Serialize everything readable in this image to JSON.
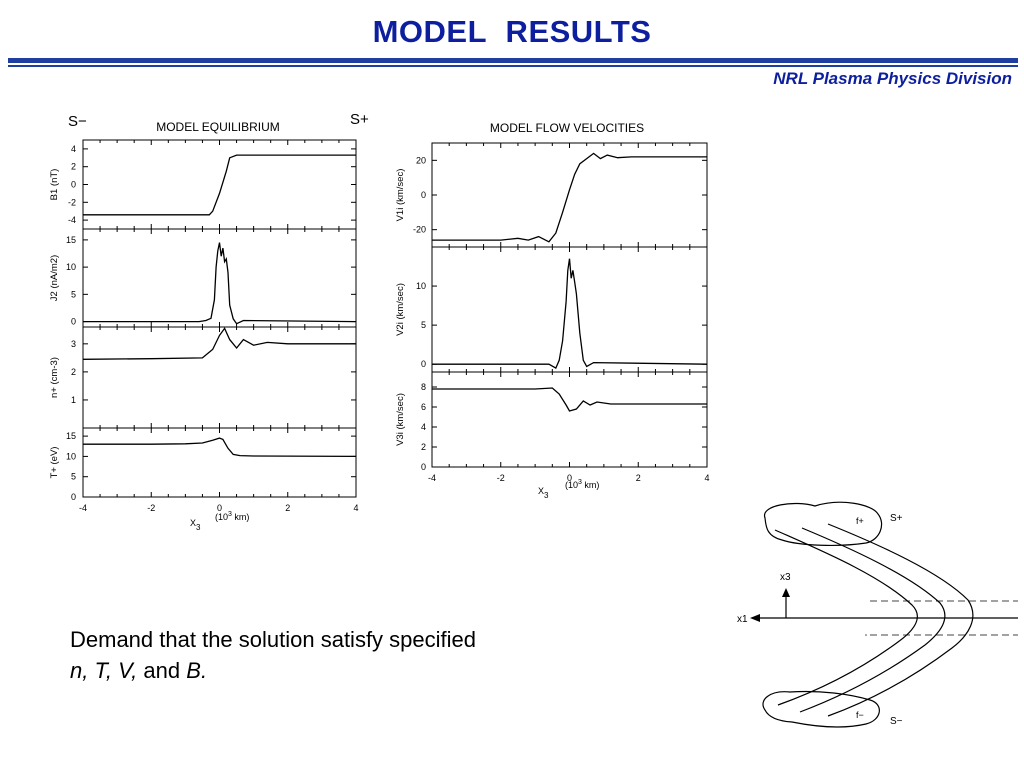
{
  "header": {
    "title": "MODEL  RESULTS",
    "subtitle": "NRL Plasma Physics Division"
  },
  "labels": {
    "s_minus": "S−",
    "s_plus": "S+"
  },
  "caption": {
    "line1": "Demand that the solution satisfy specified",
    "vars_n": "n,",
    "vars_t": "T,",
    "vars_v": "V,",
    "and_word": "and",
    "vars_b": "B."
  },
  "chart_data": [
    {
      "type": "line",
      "title": "MODEL EQUILIBRIUM",
      "xlabel": "X3  (10^3 km)",
      "xlabel_main": "X",
      "xlabel_sub": "3",
      "xlabel_unit": "(10",
      "xlabel_unit_sup": "3",
      "xlabel_unit_end": " km)",
      "xlim": [
        -4,
        4
      ],
      "xticks": [
        "-4",
        "-2",
        "0",
        "2",
        "4"
      ],
      "color": "#000000",
      "panels": [
        {
          "ylabel": "B1 (nT)",
          "ylim": [
            -5,
            5
          ],
          "yticks": [
            4,
            2,
            0,
            -2,
            -4
          ],
          "ytick_labels": [
            "4",
            "2",
            "0",
            "-2",
            "-4"
          ],
          "x": [
            -4,
            -1.0,
            -0.3,
            -0.2,
            0.0,
            0.2,
            0.3,
            0.5,
            1.0,
            4
          ],
          "y": [
            -3.4,
            -3.4,
            -3.4,
            -3.0,
            -1.0,
            1.5,
            3.0,
            3.3,
            3.3,
            3.3
          ]
        },
        {
          "ylabel": "J2 (nA/m2)",
          "ylim": [
            -1,
            17
          ],
          "yticks": [
            15,
            10,
            5,
            0
          ],
          "ytick_labels": [
            "15",
            "10",
            "5",
            "0"
          ],
          "x": [
            -4,
            -0.6,
            -0.4,
            -0.25,
            -0.15,
            -0.1,
            -0.05,
            0.0,
            0.05,
            0.1,
            0.15,
            0.2,
            0.25,
            0.3,
            0.4,
            0.5,
            0.7,
            4
          ],
          "y": [
            0,
            0,
            0.2,
            0.6,
            4,
            10,
            13,
            14.5,
            12,
            13.5,
            11,
            11.5,
            9,
            3,
            0.5,
            -0.4,
            0.2,
            0
          ]
        },
        {
          "ylabel": "n+ (cm-3)",
          "ylim": [
            0,
            3.6
          ],
          "yticks": [
            3,
            2,
            1
          ],
          "ytick_labels": [
            "3",
            "2",
            "1"
          ],
          "x": [
            -4,
            -2,
            -0.5,
            -0.2,
            0.0,
            0.15,
            0.3,
            0.5,
            0.7,
            1.0,
            1.4,
            2.0,
            4
          ],
          "y": [
            2.45,
            2.47,
            2.5,
            2.8,
            3.3,
            3.55,
            3.15,
            2.85,
            3.15,
            2.95,
            3.05,
            3.0,
            3.0
          ]
        },
        {
          "ylabel": "T+ (eV)",
          "ylim": [
            0,
            17
          ],
          "yticks": [
            15,
            10,
            5,
            0
          ],
          "ytick_labels": [
            "15",
            "10",
            "5",
            "0"
          ],
          "x": [
            -4,
            -2,
            -1,
            -0.5,
            -0.2,
            0.0,
            0.1,
            0.25,
            0.4,
            0.6,
            1.0,
            4
          ],
          "y": [
            13,
            13,
            13.1,
            13.3,
            14,
            14.5,
            14.2,
            12,
            10.5,
            10.2,
            10.1,
            10
          ]
        }
      ]
    },
    {
      "type": "line",
      "title": "MODEL FLOW VELOCITIES",
      "xlabel": "X3  (10^3 km)",
      "xlabel_main": "X",
      "xlabel_sub": "3",
      "xlabel_unit": "(10",
      "xlabel_unit_sup": "3",
      "xlabel_unit_end": " km)",
      "xlim": [
        -4,
        4
      ],
      "xticks": [
        "-4",
        "-2",
        "0",
        "2",
        "4"
      ],
      "color": "#000000",
      "panels": [
        {
          "ylabel": "V1i (km/sec)",
          "ylim": [
            -30,
            30
          ],
          "yticks": [
            20,
            0,
            -20
          ],
          "ytick_labels": [
            "20",
            "0",
            "-20"
          ],
          "x": [
            -4,
            -2,
            -1.5,
            -1.2,
            -0.9,
            -0.6,
            -0.4,
            -0.2,
            0.0,
            0.15,
            0.3,
            0.5,
            0.7,
            0.9,
            1.1,
            1.4,
            1.8,
            4
          ],
          "y": [
            -26,
            -26,
            -25,
            -26,
            -24,
            -27,
            -22,
            -10,
            3,
            12,
            18,
            21,
            24,
            21,
            23,
            21.5,
            22,
            22
          ]
        },
        {
          "ylabel": "V2i (km/sec)",
          "ylim": [
            -1,
            15
          ],
          "yticks": [
            10,
            5,
            0
          ],
          "ytick_labels": [
            "10",
            "5",
            "0"
          ],
          "x": [
            -4,
            -0.6,
            -0.4,
            -0.3,
            -0.2,
            -0.1,
            -0.05,
            0.0,
            0.05,
            0.1,
            0.15,
            0.2,
            0.3,
            0.4,
            0.5,
            0.7,
            4
          ],
          "y": [
            0,
            0,
            -0.5,
            0.5,
            3,
            8,
            12,
            13.5,
            11,
            12,
            10.5,
            9,
            4,
            0.5,
            -0.3,
            0.2,
            0
          ]
        },
        {
          "ylabel": "V3i (km/sec)",
          "ylim": [
            0,
            9.5
          ],
          "yticks": [
            8,
            6,
            4,
            2,
            0
          ],
          "ytick_labels": [
            "8",
            "6",
            "4",
            "2",
            "0"
          ],
          "x": [
            -4,
            -2,
            -1,
            -0.5,
            -0.3,
            -0.1,
            0.0,
            0.2,
            0.4,
            0.6,
            0.8,
            1.2,
            2.0,
            4
          ],
          "y": [
            7.8,
            7.8,
            7.8,
            7.9,
            7.3,
            6.2,
            5.6,
            5.8,
            6.6,
            6.2,
            6.5,
            6.3,
            6.3,
            6.3
          ]
        }
      ]
    }
  ],
  "diagram": {
    "f_plus": "f+",
    "f_minus": "f−",
    "s_plus": "S+",
    "s_minus": "S−",
    "axis_x3": "x3",
    "axis_x1": "x1"
  }
}
